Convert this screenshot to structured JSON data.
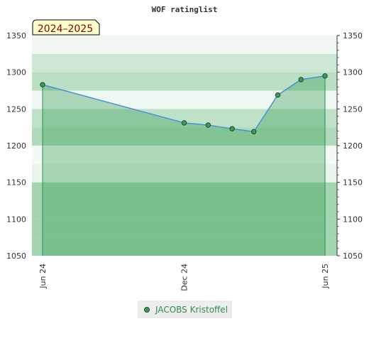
{
  "chart_data": {
    "type": "area",
    "title": "WOF ratinglist",
    "badge": "2024–2025",
    "ylim": [
      1050,
      1350
    ],
    "yticks": [
      1050,
      1100,
      1150,
      1200,
      1250,
      1300,
      1350
    ],
    "xticks": [
      {
        "label": "Jun 24",
        "x": "2024-06-01"
      },
      {
        "label": "Dec 24",
        "x": "2024-12-01"
      },
      {
        "label": "Jun 25",
        "x": "2025-06-01"
      }
    ],
    "xlim": [
      "2024-06-01",
      "2025-06-01"
    ],
    "series": [
      {
        "name": "JACOBS Kristoffel",
        "x": [
          "2024-06-01",
          "2024-12-01",
          "2025-01-01",
          "2025-02-01",
          "2025-03-01",
          "2025-04-01",
          "2025-05-01",
          "2025-06-01"
        ],
        "values": [
          1283,
          1231,
          1228,
          1223,
          1219,
          1269,
          1290,
          1295
        ]
      }
    ],
    "legend": "bottom-center",
    "grid": true,
    "colors": {
      "line": "#4a90d9",
      "fill": "#2e9b4e",
      "marker": "#3d9a5e",
      "band_dark": "#7cc191",
      "band_mid": "#a3d4b0",
      "band_light": "#e8f4ec"
    }
  }
}
